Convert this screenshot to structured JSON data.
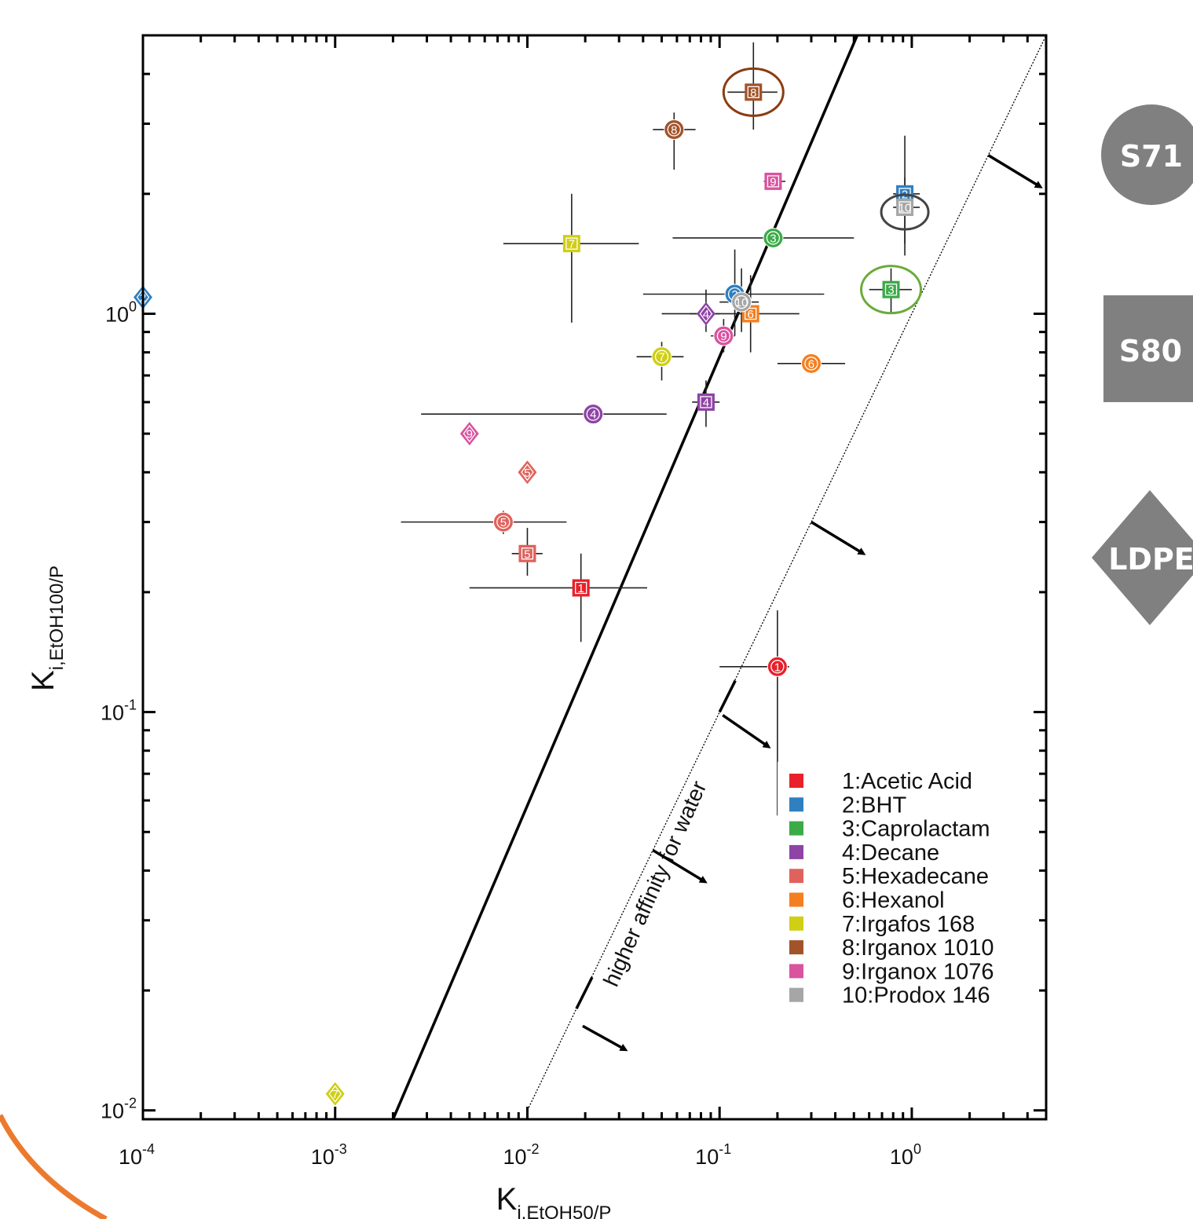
{
  "chart_data": {
    "type": "scatter",
    "x_scale": "log",
    "y_scale": "log",
    "xlim": [
      0.0001,
      5
    ],
    "ylim": [
      0.0095,
      5
    ],
    "xlabel": "K",
    "xlabel_sub": "i,EtOH50/P",
    "ylabel": "K",
    "ylabel_sub": "i,EtOH100/P",
    "x_ticks": [
      {
        "value": 0.0001,
        "base": "10",
        "exp": "-4"
      },
      {
        "value": 0.001,
        "base": "10",
        "exp": "-3"
      },
      {
        "value": 0.01,
        "base": "10",
        "exp": "-2"
      },
      {
        "value": 0.1,
        "base": "10",
        "exp": "-1"
      },
      {
        "value": 1,
        "base": "10",
        "exp": "0"
      }
    ],
    "y_ticks": [
      {
        "value": 0.01,
        "base": "10",
        "exp": "-2"
      },
      {
        "value": 0.1,
        "base": "10",
        "exp": "-1"
      },
      {
        "value": 1,
        "base": "10",
        "exp": "0"
      }
    ],
    "reference_lines": [
      {
        "style": "solid",
        "points": [
          [
            0.002,
            0.0095
          ],
          [
            0.52,
            5
          ]
        ]
      },
      {
        "style": "dotted",
        "points": [
          [
            0.01,
            0.01
          ],
          [
            5,
            5
          ]
        ]
      }
    ],
    "annotation": {
      "text": "higher affinity for water"
    },
    "legend_position": "bottom-right",
    "series": [
      {
        "name": "1:Acetic Acid",
        "label": "1",
        "color": "#e8202a",
        "points": [
          {
            "shape": "square",
            "x": 0.019,
            "y": 0.205,
            "xerr": [
              0.005,
              0.042
            ],
            "yerr": [
              0.15,
              0.25
            ]
          },
          {
            "shape": "circle",
            "x": 0.2,
            "y": 0.13,
            "xerr": [
              0.1,
              0.23
            ],
            "yerr": [
              0.055,
              0.18
            ]
          }
        ]
      },
      {
        "name": "2:BHT",
        "label": "2",
        "color": "#2f7fc1",
        "points": [
          {
            "shape": "diamond",
            "x": 0.0001,
            "y": 1.1
          },
          {
            "shape": "circle",
            "x": 0.12,
            "y": 1.12,
            "xerr": [
              0.04,
              0.35
            ],
            "yerr": [
              0.88,
              1.45
            ]
          },
          {
            "shape": "square",
            "x": 0.92,
            "y": 2.0,
            "xerr": [
              0.8,
              1.1
            ],
            "yerr": [
              1.4,
              2.8
            ]
          }
        ]
      },
      {
        "name": "3:Caprolactam",
        "label": "3",
        "color": "#3bab48",
        "points": [
          {
            "shape": "circle",
            "x": 0.19,
            "y": 1.55,
            "xerr": [
              0.057,
              0.5
            ]
          },
          {
            "shape": "square",
            "x": 0.78,
            "y": 1.15,
            "xerr": [
              0.6,
              1.0
            ],
            "yerr": [
              1.0,
              1.3
            ]
          }
        ]
      },
      {
        "name": "4:Decane",
        "label": "4",
        "color": "#8e44a5",
        "points": [
          {
            "shape": "circle",
            "x": 0.022,
            "y": 0.56,
            "xerr": [
              0.0028,
              0.053
            ]
          },
          {
            "shape": "diamond",
            "x": 0.085,
            "y": 1.0,
            "xerr": [
              0.07,
              0.1
            ],
            "yerr": [
              0.9,
              1.15
            ]
          },
          {
            "shape": "square",
            "x": 0.085,
            "y": 0.6,
            "xerr": [
              0.072,
              0.1
            ],
            "yerr": [
              0.52,
              0.68
            ]
          }
        ]
      },
      {
        "name": "5:Hexadecane",
        "label": "5",
        "color": "#e0625c",
        "points": [
          {
            "shape": "diamond",
            "x": 0.01,
            "y": 0.4
          },
          {
            "shape": "circle",
            "x": 0.0075,
            "y": 0.3,
            "xerr": [
              0.0022,
              0.016
            ],
            "yerr": [
              0.28,
              0.32
            ]
          },
          {
            "shape": "square",
            "x": 0.01,
            "y": 0.25,
            "xerr": [
              0.0083,
              0.012
            ],
            "yerr": [
              0.22,
              0.29
            ]
          }
        ]
      },
      {
        "name": "6:Hexanol",
        "label": "6",
        "color": "#f47f20",
        "points": [
          {
            "shape": "circle",
            "x": 0.3,
            "y": 0.75,
            "xerr": [
              0.2,
              0.45
            ]
          },
          {
            "shape": "square",
            "x": 0.145,
            "y": 1.0,
            "xerr": [
              0.05,
              0.26
            ],
            "yerr": [
              0.8,
              1.25
            ]
          }
        ]
      },
      {
        "name": "7:Irgafos 168",
        "label": "7",
        "color": "#cfcf14",
        "points": [
          {
            "shape": "diamond",
            "x": 0.001,
            "y": 0.011
          },
          {
            "shape": "square",
            "x": 0.017,
            "y": 1.5,
            "xerr": [
              0.0075,
              0.038
            ],
            "yerr": [
              0.95,
              2.0
            ]
          },
          {
            "shape": "circle",
            "x": 0.05,
            "y": 0.78,
            "xerr": [
              0.037,
              0.065
            ],
            "yerr": [
              0.68,
              0.85
            ]
          }
        ]
      },
      {
        "name": "8:Irganox 1010",
        "label": "8",
        "color": "#a2532a",
        "points": [
          {
            "shape": "square",
            "x": 0.15,
            "y": 3.6,
            "xerr": [
              0.11,
              0.2
            ],
            "yerr": [
              2.9,
              4.8
            ]
          },
          {
            "shape": "circle",
            "x": 0.058,
            "y": 2.9,
            "xerr": [
              0.045,
              0.075
            ],
            "yerr": [
              2.3,
              3.2
            ]
          }
        ]
      },
      {
        "name": "9:Irganox 1076",
        "label": "9",
        "color": "#d9539f",
        "points": [
          {
            "shape": "diamond",
            "x": 0.005,
            "y": 0.5
          },
          {
            "shape": "square",
            "x": 0.19,
            "y": 2.15,
            "xerr": [
              0.17,
              0.22
            ]
          },
          {
            "shape": "circle",
            "x": 0.105,
            "y": 0.88,
            "xerr": [
              0.09,
              0.12
            ],
            "yerr": [
              0.8,
              0.97
            ]
          }
        ]
      },
      {
        "name": "10:Prodox 146",
        "label": "10",
        "color": "#a6a6a6",
        "points": [
          {
            "shape": "square",
            "x": 0.92,
            "y": 1.85,
            "xerr": [
              0.8,
              1.1
            ],
            "yerr": [
              1.5,
              2.2
            ]
          },
          {
            "shape": "circle",
            "x": 0.13,
            "y": 1.07,
            "xerr": [
              0.1,
              0.16
            ],
            "yerr": [
              0.9,
              1.3
            ]
          }
        ]
      }
    ],
    "highlight_circles": [
      {
        "x": 0.15,
        "y": 3.6,
        "color": "#8a3c10"
      },
      {
        "x": 0.92,
        "y": 1.8,
        "color": "#444444"
      },
      {
        "x": 0.78,
        "y": 1.15,
        "color": "#6aab3a"
      }
    ]
  },
  "shape_key": [
    {
      "shape": "circle",
      "label": "S71",
      "color": "#808080"
    },
    {
      "shape": "square",
      "label": "S80",
      "color": "#808080"
    },
    {
      "shape": "diamond",
      "label": "LDPE",
      "color": "#808080"
    }
  ]
}
